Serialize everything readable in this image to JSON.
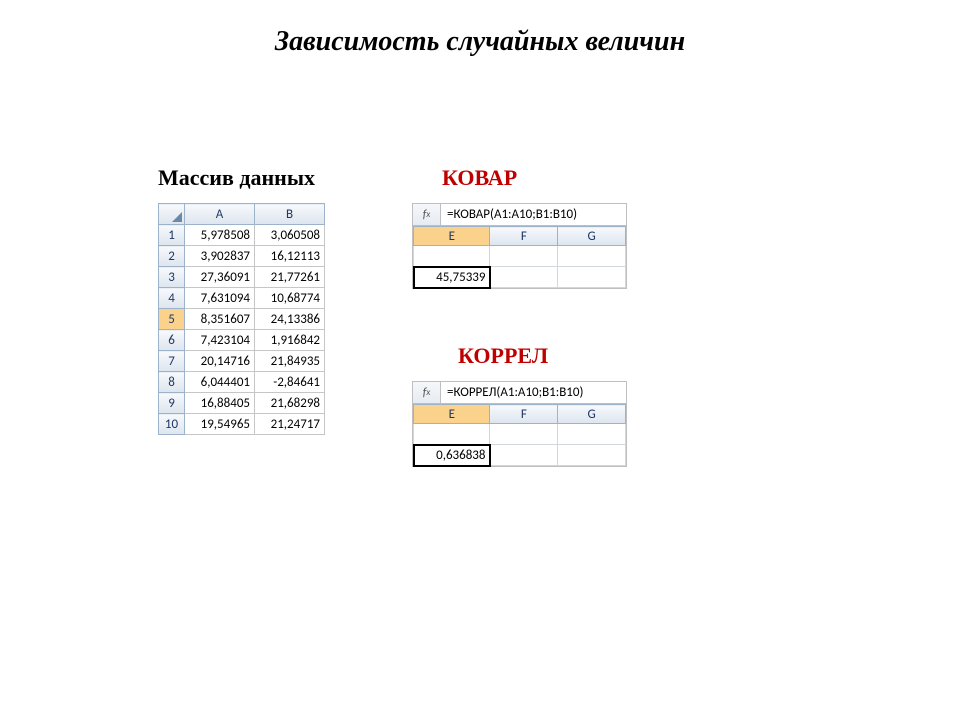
{
  "title": "Зависимость случайных величин",
  "labels": {
    "data_array": "Массив данных",
    "covar": "КОВАР",
    "correl": "КОРРЕЛ"
  },
  "data_table": {
    "headers": [
      "A",
      "B"
    ],
    "rows": [
      [
        "5,978508",
        "3,060508"
      ],
      [
        "3,902837",
        "16,12113"
      ],
      [
        "27,36091",
        "21,77261"
      ],
      [
        "7,631094",
        "10,68774"
      ],
      [
        "8,351607",
        "24,13386"
      ],
      [
        "7,423104",
        "1,916842"
      ],
      [
        "20,14716",
        "21,84935"
      ],
      [
        "6,044401",
        "-2,84641"
      ],
      [
        "16,88405",
        "21,68298"
      ],
      [
        "19,54965",
        "21,24717"
      ]
    ],
    "selected_row_index": 4
  },
  "covar_box": {
    "formula": "=КОВАР(A1:A10;B1:B10)",
    "headers": [
      "E",
      "F",
      "G"
    ],
    "active_header_index": 0,
    "result": "45,75339"
  },
  "correl_box": {
    "formula": "=КОРРЕЛ(A1:A10;B1:B10)",
    "headers": [
      "E",
      "F",
      "G"
    ],
    "active_header_index": 0,
    "result": "0,636838"
  },
  "colors": {
    "accent_red": "#c00000",
    "header_gradient_top": "#f7f9fc",
    "header_gradient_bottom": "#dde5ee",
    "selected_orange": "#fbd28b",
    "grid_border": "#c6c6c6",
    "header_border": "#9db3c9"
  },
  "typography": {
    "title_fontsize_pt": 21,
    "label_fontsize_pt": 16,
    "cell_fontsize_pt": 10
  }
}
